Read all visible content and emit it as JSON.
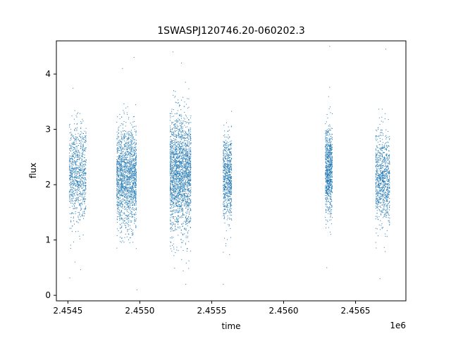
{
  "chart_data": {
    "type": "scatter",
    "title": "1SWASPJ120746.20-060202.3",
    "xlabel": "time",
    "ylabel": "flux",
    "x_offset_label": "1e6",
    "xlim": [
      2.45442,
      2.45685
    ],
    "ylim": [
      -0.1,
      4.6
    ],
    "xticks": [
      2.4545,
      2.455,
      2.4555,
      2.456,
      2.4565
    ],
    "xtick_labels": [
      "2.4545",
      "2.4550",
      "2.4555",
      "2.4560",
      "2.4565"
    ],
    "yticks": [
      0,
      1,
      2,
      3,
      4
    ],
    "ytick_labels": [
      "0",
      "1",
      "2",
      "3",
      "4"
    ],
    "grid": false,
    "legend": "none",
    "marker_color": "#1f77b4",
    "series": [
      {
        "clusters": [
          {
            "x_range": [
              2.45451,
              2.45463
            ],
            "y_center": 2.2,
            "y_spread": 0.45,
            "n": 900
          },
          {
            "x_range": [
              2.45484,
              2.45498
            ],
            "y_center": 2.15,
            "y_spread": 0.45,
            "n": 1800
          },
          {
            "x_range": [
              2.45521,
              2.45536
            ],
            "y_center": 2.2,
            "y_spread": 0.5,
            "n": 2200
          },
          {
            "x_range": [
              2.45558,
              2.45564
            ],
            "y_center": 2.15,
            "y_spread": 0.4,
            "n": 700
          },
          {
            "x_range": [
              2.45629,
              2.45634
            ],
            "y_center": 2.25,
            "y_spread": 0.4,
            "n": 800
          },
          {
            "x_range": [
              2.45664,
              2.45674
            ],
            "y_center": 2.1,
            "y_spread": 0.4,
            "n": 900
          }
        ],
        "outliers": [
          {
            "x": 2.45632,
            "y": 4.5
          },
          {
            "x": 2.45523,
            "y": 4.4
          },
          {
            "x": 2.45529,
            "y": 4.2
          },
          {
            "x": 2.45671,
            "y": 4.45
          },
          {
            "x": 2.45496,
            "y": 4.3
          },
          {
            "x": 2.45532,
            "y": 0.2
          },
          {
            "x": 2.45498,
            "y": 0.1
          },
          {
            "x": 2.45558,
            "y": 0.2
          },
          {
            "x": 2.45667,
            "y": 0.3
          },
          {
            "x": 2.4563,
            "y": 0.5
          },
          {
            "x": 2.45455,
            "y": 0.6
          },
          {
            "x": 2.45488,
            "y": 4.1
          }
        ]
      }
    ]
  }
}
